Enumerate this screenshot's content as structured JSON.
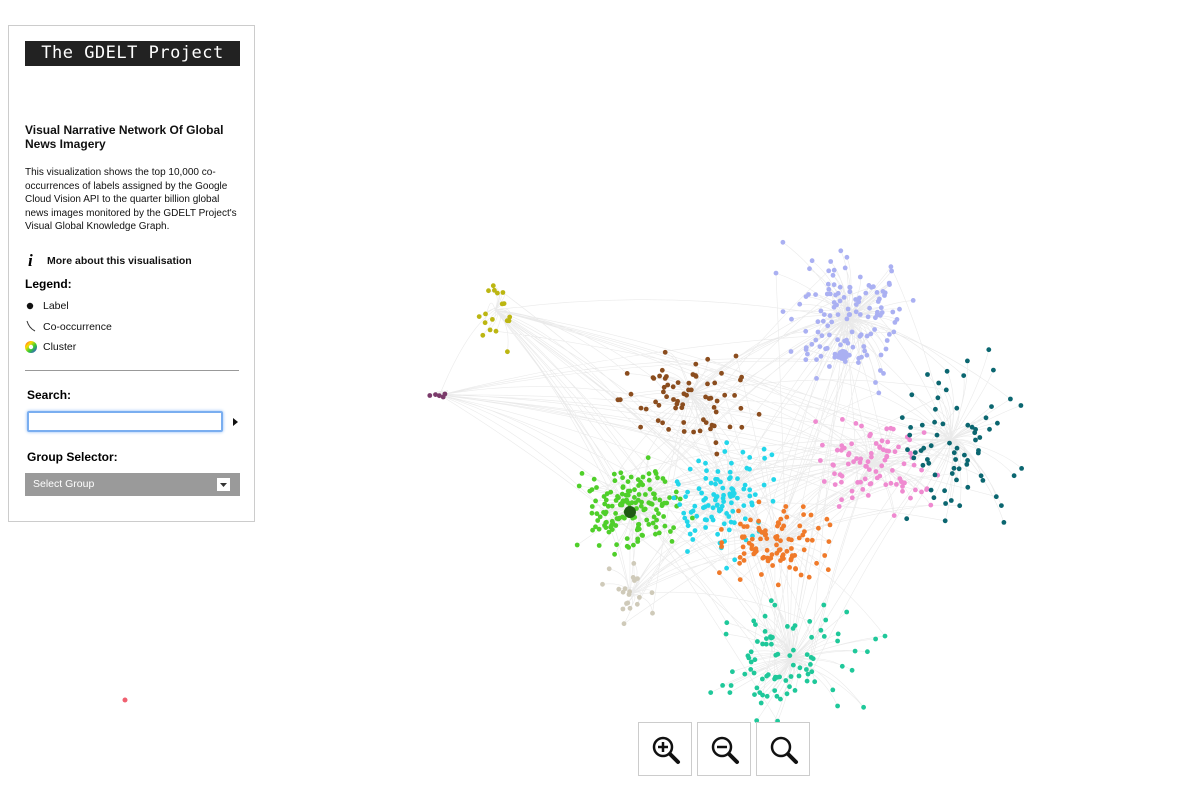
{
  "header": {
    "logo": "The GDELT Project"
  },
  "panel": {
    "title": "Visual Narrative Network Of Global News Imagery",
    "description": "This visualization shows the top 10,000 co-occurrences of labels assigned by the Google Cloud Vision API to the quarter billion global news images monitored by the GDELT Project's Visual Global Knowledge Graph.",
    "more_link": "More about this visualisation"
  },
  "legend": {
    "title": "Legend:",
    "items": [
      "Label",
      "Co-occurrence",
      "Cluster"
    ]
  },
  "search": {
    "label": "Search:"
  },
  "group_selector": {
    "label": "Group Selector:",
    "placeholder": "Select Group"
  }
}
